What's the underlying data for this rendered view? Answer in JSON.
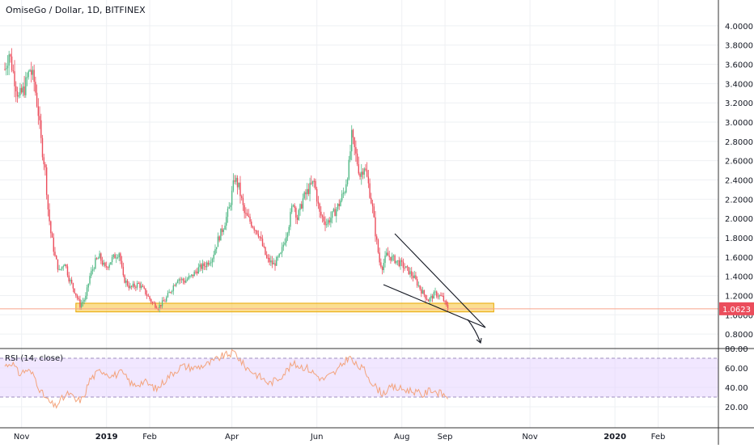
{
  "chart_data": [
    {
      "type": "candlestick",
      "title": "OmiseGo / Dollar, 1D, BITFINEX",
      "ylim": [
        0.7,
        4.1
      ],
      "y_ticks": [
        "4.0000",
        "3.8000",
        "3.6000",
        "3.4000",
        "3.2000",
        "3.0000",
        "2.8000",
        "2.6000",
        "2.4000",
        "2.2000",
        "2.0000",
        "1.8000",
        "1.6000",
        "1.4000",
        "1.2000",
        "1.0000",
        "0.8000"
      ],
      "x_ticks": [
        "Nov",
        "2019",
        "Feb",
        "Apr",
        "Jun",
        "Aug",
        "Sep",
        "Nov",
        "2020",
        "Feb"
      ],
      "last_price": "1.0623",
      "price_path": [
        [
          "2018-10-20",
          3.55
        ],
        [
          "2018-10-23",
          3.72
        ],
        [
          "2018-10-27",
          3.45
        ],
        [
          "2018-10-30",
          3.25
        ],
        [
          "2018-11-03",
          3.35
        ],
        [
          "2018-11-07",
          3.55
        ],
        [
          "2018-11-10",
          3.42
        ],
        [
          "2018-11-13",
          3.1
        ],
        [
          "2018-11-15",
          2.8
        ],
        [
          "2018-11-18",
          2.5
        ],
        [
          "2018-11-20",
          2.1
        ],
        [
          "2018-11-22",
          1.85
        ],
        [
          "2018-11-25",
          1.6
        ],
        [
          "2018-11-28",
          1.45
        ],
        [
          "2018-12-02",
          1.55
        ],
        [
          "2018-12-05",
          1.38
        ],
        [
          "2018-12-09",
          1.25
        ],
        [
          "2018-12-13",
          1.1
        ],
        [
          "2018-12-17",
          1.18
        ],
        [
          "2018-12-20",
          1.4
        ],
        [
          "2018-12-24",
          1.55
        ],
        [
          "2018-12-27",
          1.6
        ],
        [
          "2018-12-31",
          1.48
        ],
        [
          "2019-01-05",
          1.58
        ],
        [
          "2019-01-10",
          1.65
        ],
        [
          "2019-01-13",
          1.38
        ],
        [
          "2019-01-18",
          1.28
        ],
        [
          "2019-01-24",
          1.32
        ],
        [
          "2019-01-28",
          1.25
        ],
        [
          "2019-02-03",
          1.12
        ],
        [
          "2019-02-07",
          1.08
        ],
        [
          "2019-02-12",
          1.15
        ],
        [
          "2019-02-16",
          1.25
        ],
        [
          "2019-02-21",
          1.38
        ],
        [
          "2019-02-26",
          1.35
        ],
        [
          "2019-03-03",
          1.4
        ],
        [
          "2019-03-08",
          1.48
        ],
        [
          "2019-03-13",
          1.52
        ],
        [
          "2019-03-18",
          1.6
        ],
        [
          "2019-03-22",
          1.78
        ],
        [
          "2019-03-26",
          1.92
        ],
        [
          "2019-03-30",
          2.1
        ],
        [
          "2019-04-03",
          2.42
        ],
        [
          "2019-04-06",
          2.32
        ],
        [
          "2019-04-10",
          2.05
        ],
        [
          "2019-04-15",
          1.95
        ],
        [
          "2019-04-20",
          1.85
        ],
        [
          "2019-04-26",
          1.58
        ],
        [
          "2019-05-01",
          1.52
        ],
        [
          "2019-05-06",
          1.62
        ],
        [
          "2019-05-12",
          1.95
        ],
        [
          "2019-05-15",
          2.18
        ],
        [
          "2019-05-18",
          2.0
        ],
        [
          "2019-05-22",
          2.2
        ],
        [
          "2019-05-26",
          2.3
        ],
        [
          "2019-05-30",
          2.38
        ],
        [
          "2019-06-03",
          2.05
        ],
        [
          "2019-06-08",
          1.95
        ],
        [
          "2019-06-13",
          2.05
        ],
        [
          "2019-06-17",
          2.15
        ],
        [
          "2019-06-21",
          2.3
        ],
        [
          "2019-06-24",
          2.55
        ],
        [
          "2019-06-26",
          2.85
        ],
        [
          "2019-06-29",
          2.65
        ],
        [
          "2019-07-02",
          2.45
        ],
        [
          "2019-07-05",
          2.55
        ],
        [
          "2019-07-08",
          2.35
        ],
        [
          "2019-07-11",
          2.1
        ],
        [
          "2019-07-13",
          1.85
        ],
        [
          "2019-07-16",
          1.55
        ],
        [
          "2019-07-18",
          1.5
        ],
        [
          "2019-07-21",
          1.62
        ],
        [
          "2019-07-26",
          1.58
        ],
        [
          "2019-08-01",
          1.52
        ],
        [
          "2019-08-06",
          1.45
        ],
        [
          "2019-08-10",
          1.38
        ],
        [
          "2019-08-15",
          1.25
        ],
        [
          "2019-08-20",
          1.15
        ],
        [
          "2019-08-25",
          1.22
        ],
        [
          "2019-08-30",
          1.18
        ],
        [
          "2019-09-03",
          1.06
        ]
      ],
      "support_zone": {
        "from": "2018-12-10",
        "to": "2019-10-06",
        "low": 1.03,
        "high": 1.12,
        "color": "#f9c847"
      },
      "price_line_color": "#f7a38a",
      "up_color": "#53b987",
      "down_color": "#eb4d5c"
    },
    {
      "type": "line",
      "title": "RSI (14, close)",
      "ylim": [
        15,
        85
      ],
      "y_ticks": [
        "80.00",
        "60.00",
        "40.00",
        "20.00"
      ],
      "band": {
        "low": 30,
        "high": 70,
        "color": "#e6d3ff"
      },
      "line_color": "#f3a37c",
      "rsi_path": [
        [
          "2018-10-20",
          62
        ],
        [
          "2018-10-25",
          66
        ],
        [
          "2018-10-30",
          54
        ],
        [
          "2018-11-05",
          58
        ],
        [
          "2018-11-10",
          52
        ],
        [
          "2018-11-15",
          35
        ],
        [
          "2018-11-20",
          26
        ],
        [
          "2018-11-25",
          20
        ],
        [
          "2018-11-30",
          28
        ],
        [
          "2018-12-05",
          34
        ],
        [
          "2018-12-10",
          26
        ],
        [
          "2018-12-15",
          28
        ],
        [
          "2018-12-20",
          48
        ],
        [
          "2018-12-28",
          58
        ],
        [
          "2019-01-05",
          52
        ],
        [
          "2019-01-12",
          55
        ],
        [
          "2019-01-20",
          42
        ],
        [
          "2019-01-28",
          46
        ],
        [
          "2019-02-06",
          38
        ],
        [
          "2019-02-15",
          52
        ],
        [
          "2019-02-24",
          62
        ],
        [
          "2019-03-05",
          60
        ],
        [
          "2019-03-15",
          64
        ],
        [
          "2019-03-25",
          72
        ],
        [
          "2019-04-03",
          76
        ],
        [
          "2019-04-10",
          62
        ],
        [
          "2019-04-20",
          52
        ],
        [
          "2019-04-28",
          44
        ],
        [
          "2019-05-05",
          50
        ],
        [
          "2019-05-15",
          64
        ],
        [
          "2019-05-25",
          60
        ],
        [
          "2019-06-05",
          48
        ],
        [
          "2019-06-15",
          56
        ],
        [
          "2019-06-24",
          72
        ],
        [
          "2019-06-28",
          64
        ],
        [
          "2019-07-05",
          58
        ],
        [
          "2019-07-12",
          42
        ],
        [
          "2019-07-18",
          34
        ],
        [
          "2019-07-25",
          40
        ],
        [
          "2019-08-02",
          38
        ],
        [
          "2019-08-10",
          36
        ],
        [
          "2019-08-16",
          32
        ],
        [
          "2019-08-22",
          38
        ],
        [
          "2019-08-28",
          34
        ],
        [
          "2019-09-03",
          31
        ]
      ]
    }
  ]
}
